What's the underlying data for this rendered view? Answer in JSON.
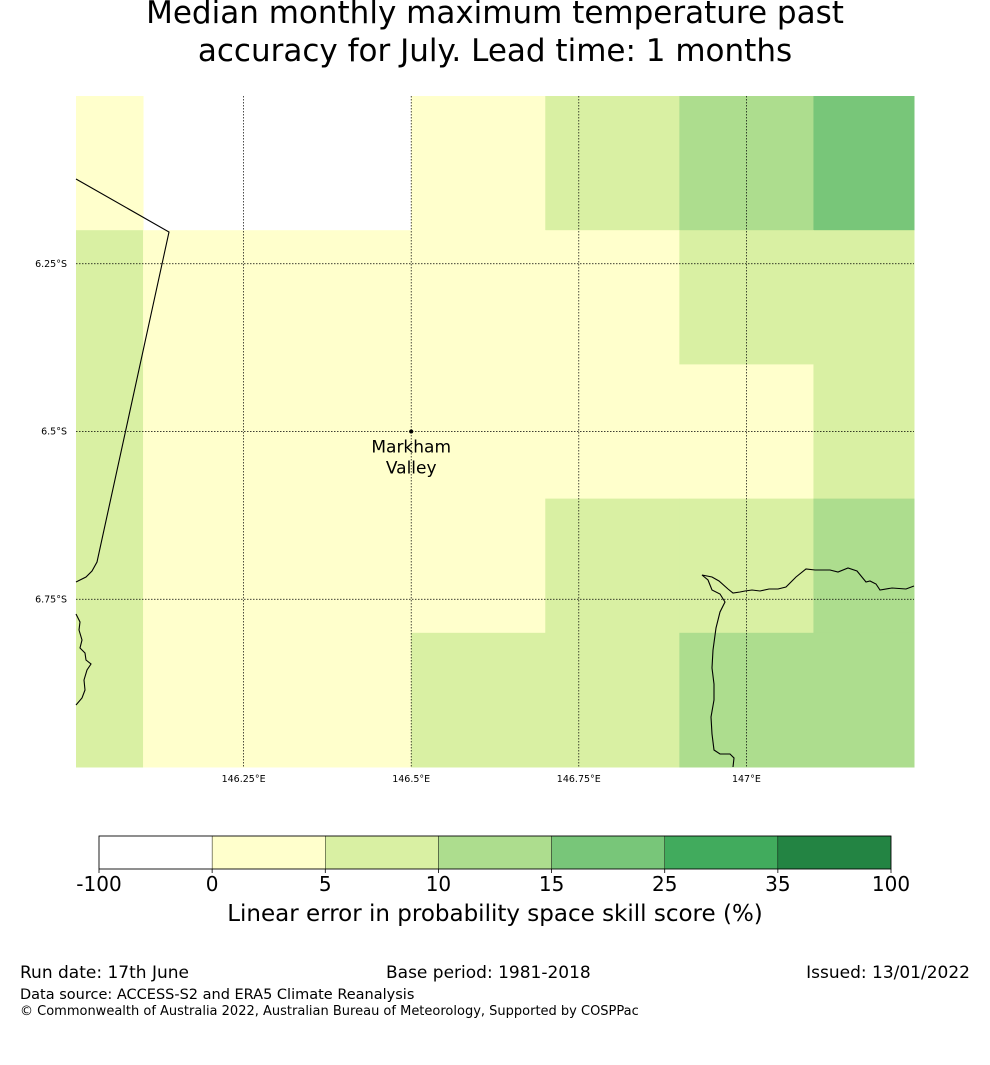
{
  "title": {
    "line1": "Median monthly maximum temperature past",
    "line2": "accuracy for July. Lead time: 1 months"
  },
  "map": {
    "lon_range": [
      146.0,
      147.25
    ],
    "lat_range": [
      -6.0,
      -7.0
    ],
    "lon_ticks": [
      {
        "value": 146.25,
        "label": "146.25°E"
      },
      {
        "value": 146.5,
        "label": "146.5°E"
      },
      {
        "value": 146.75,
        "label": "146.75°E"
      },
      {
        "value": 147.0,
        "label": "147°E"
      }
    ],
    "lat_ticks": [
      {
        "value": -6.25,
        "label": "6.25°S"
      },
      {
        "value": -6.5,
        "label": "6.5°S"
      },
      {
        "value": -6.75,
        "label": "6.75°S"
      }
    ],
    "place": {
      "name_line1": "Markham",
      "name_line2": "Valley",
      "lon": 146.5,
      "lat": -6.5
    },
    "grid_lon_edges": [
      146.0,
      146.1,
      146.3,
      146.5,
      146.7,
      146.9,
      147.1,
      147.25
    ],
    "grid_lat_edges": [
      -6.0,
      -6.2,
      -6.4,
      -6.6,
      -6.8,
      -7.0
    ],
    "skill_category_rows": [
      [
        1,
        -1,
        -1,
        1,
        2,
        3,
        4
      ],
      [
        2,
        1,
        1,
        1,
        1,
        2,
        2
      ],
      [
        2,
        1,
        1,
        1,
        1,
        1,
        2
      ],
      [
        2,
        1,
        1,
        1,
        2,
        2,
        3
      ],
      [
        2,
        1,
        1,
        2,
        2,
        3,
        3
      ]
    ]
  },
  "colorbar": {
    "colors": [
      "#ffffff",
      "#ffffcc",
      "#d9f0a3",
      "#addd8e",
      "#78c679",
      "#41ab5d",
      "#238443"
    ],
    "tick_labels": [
      "-100",
      "0",
      "5",
      "10",
      "15",
      "25",
      "35",
      "100"
    ],
    "title": "Linear error in probability space skill score (%)"
  },
  "footer": {
    "run_date": "Run date: 17th June",
    "base_period": "Base period: 1981-2018",
    "issued": "Issued: 13/01/2022",
    "data_source": "Data source: ACCESS-S2 and ERA5 Climate Reanalysis",
    "copyright": "© Commonwealth of Australia 2022, Australian Bureau of Meteorology, Supported by COSPPac"
  }
}
